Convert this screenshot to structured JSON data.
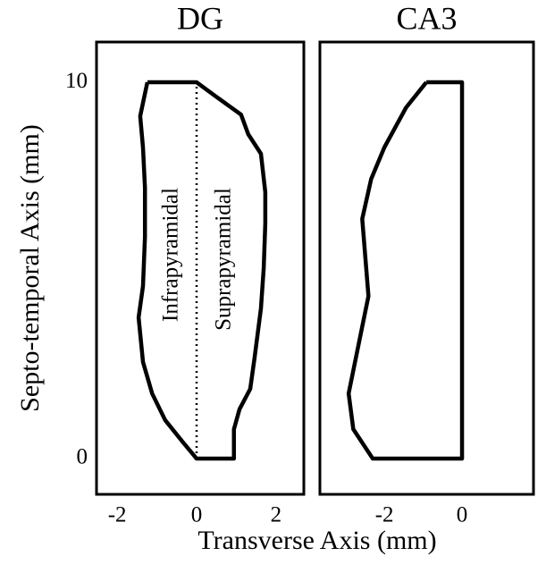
{
  "xlabel": "Transverse Axis (mm)",
  "ylabel": "Septo-temporal Axis (mm)",
  "chart_data": [
    {
      "type": "line",
      "title": "DG",
      "annotations": [
        "Infrapyramidal",
        "Suprapyramidal"
      ],
      "xlim": [
        -2.52,
        2.7
      ],
      "ylim": [
        -0.95,
        11.07
      ],
      "xticks": [
        -2,
        0,
        2
      ],
      "yticks": [
        0,
        10
      ],
      "series": [
        {
          "color": "#000000",
          "style": "solid",
          "x": [
            -1.24,
            0,
            0.49,
            1.12,
            1.3,
            1.62,
            1.73,
            1.73,
            1.69,
            1.62,
            1.46,
            1.35,
            1.08,
            0.94,
            0.94,
            0,
            -0.34,
            -0.79,
            -1.12,
            -1.35,
            -1.46,
            -1.35,
            -1.3,
            -1.3,
            -1.35,
            -1.42,
            -1.24
          ],
          "y": [
            10,
            10,
            9.62,
            9.14,
            8.62,
            8.1,
            7.08,
            6.25,
            5.06,
            3.99,
            2.68,
            1.85,
            1.31,
            0.78,
            0,
            0,
            0.43,
            1.02,
            1.73,
            2.57,
            3.75,
            4.58,
            5.89,
            7.2,
            8.27,
            9.1,
            10
          ]
        },
        {
          "color": "#000000",
          "style": "dotted",
          "x": [
            0,
            0
          ],
          "y": [
            0,
            10
          ]
        }
      ]
    },
    {
      "type": "line",
      "title": "CA3",
      "xlim": [
        -3.66,
        1.84
      ],
      "ylim": [
        -0.95,
        11.07
      ],
      "xticks": [
        -2,
        0
      ],
      "series": [
        {
          "color": "#000000",
          "style": "solid",
          "x": [
            -0.92,
            0,
            0,
            -2.3,
            -2.8,
            -2.92,
            -2.69,
            -2.41,
            -2.57,
            -2.34,
            -2.0,
            -1.44,
            -0.92
          ],
          "y": [
            10,
            10,
            0,
            0,
            0.78,
            1.73,
            2.9,
            4.32,
            6.37,
            7.43,
            8.27,
            9.33,
            10
          ]
        }
      ]
    }
  ]
}
